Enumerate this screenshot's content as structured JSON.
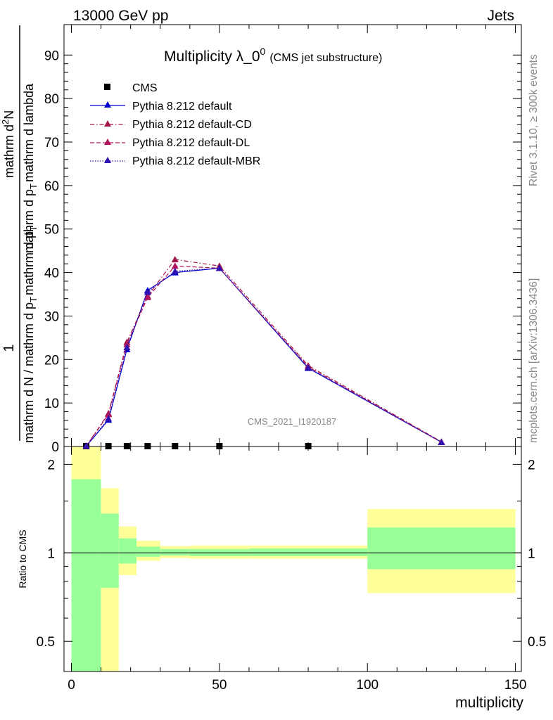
{
  "header": {
    "energy_label": "13000 GeV pp",
    "category_label": "Jets"
  },
  "side_labels": {
    "rivet": "Rivet 3.1.10, ≥ 300k events",
    "mcplots": "mcplots.cern.ch [arXiv:1306.3436]"
  },
  "watermark": "CMS_2021_I1920187",
  "chart_data": [
    {
      "type": "line",
      "title_main": "Multiplicity λ_0",
      "title_sup": "0",
      "title_sub": "(CMS jet substructure)",
      "ylabel": {
        "fraction_numerator": "1",
        "denominator": "mathrm d N / mathrm d p",
        "denominator_sub": "T",
        "denominator_tail": "mathrm d p",
        "denominator_tail_sub": "T",
        "numerator": "mathrm d",
        "numerator_sup": "2",
        "numerator_tail": "N",
        "stack": "mathrm d p",
        "stack_sub": "T",
        "stack_tail": "mathrm d lambda"
      },
      "xlim": [
        -2.5,
        152
      ],
      "ylim": [
        0,
        97
      ],
      "yticks": [
        0,
        10,
        20,
        30,
        40,
        50,
        60,
        70,
        80,
        90
      ],
      "ytick_labels": [
        "0",
        "10",
        "20",
        "30",
        "40",
        "50",
        "60",
        "70",
        "80",
        "90"
      ],
      "legend_position": "top-left",
      "series": [
        {
          "name": "CMS",
          "style": "marker-square",
          "color": "#000000",
          "x": [
            5,
            12.5,
            18.75,
            25.75,
            35,
            50,
            80
          ],
          "y": [
            0,
            0,
            0,
            0,
            0,
            0,
            0
          ]
        },
        {
          "name": "Pythia 8.212 default",
          "style": "solid",
          "color": "#0000cc",
          "x": [
            5,
            12.5,
            18.75,
            25.75,
            35,
            50,
            80,
            125
          ],
          "y": [
            0.1,
            6.1,
            22.3,
            35.9,
            40.0,
            41.0,
            18.0,
            1.0
          ]
        },
        {
          "name": "Pythia 8.212 default-CD",
          "style": "dashdot",
          "color": "#a1164b",
          "x": [
            5,
            12.5,
            18.75,
            25.75,
            35,
            50,
            80,
            125
          ],
          "y": [
            0.1,
            7.6,
            24.0,
            34.6,
            43.0,
            41.5,
            18.6,
            1.1
          ]
        },
        {
          "name": "Pythia 8.212 default-DL",
          "style": "dashed",
          "color": "#b01560",
          "x": [
            5,
            12.5,
            18.75,
            25.75,
            35,
            50,
            80,
            125
          ],
          "y": [
            0.1,
            7.4,
            23.5,
            34.3,
            41.5,
            41.0,
            18.3,
            1.0
          ]
        },
        {
          "name": "Pythia 8.212 default-MBR",
          "style": "dotted",
          "color": "#3010b0",
          "x": [
            5,
            12.5,
            18.75,
            25.75,
            35,
            50,
            80,
            125
          ],
          "y": [
            0.1,
            6.4,
            22.8,
            35.5,
            40.3,
            41.0,
            18.1,
            1.0
          ]
        }
      ]
    },
    {
      "type": "area",
      "ylabel": "Ratio to CMS",
      "xlabel": "multiplicity",
      "xlim": [
        -2.5,
        152
      ],
      "ylim": [
        0.395,
        2.3
      ],
      "xticks": [
        0,
        50,
        100,
        150
      ],
      "xtick_labels": [
        "0",
        "50",
        "100",
        "150"
      ],
      "yticks": [
        0.5,
        1,
        2
      ],
      "ytick_labels": [
        "0.5",
        "1",
        "2"
      ],
      "reference_line": 1,
      "bins": [
        {
          "x0": 0,
          "x1": 10,
          "inner": [
            0.3,
            1.78
          ],
          "outer": [
            0.2,
            3.0
          ]
        },
        {
          "x0": 10,
          "x1": 16,
          "inner": [
            0.76,
            1.36
          ],
          "outer": [
            0.38,
            1.66
          ]
        },
        {
          "x0": 16,
          "x1": 22,
          "inner": [
            0.92,
            1.12
          ],
          "outer": [
            0.84,
            1.23
          ]
        },
        {
          "x0": 22,
          "x1": 30,
          "inner": [
            0.97,
            1.05
          ],
          "outer": [
            0.94,
            1.1
          ]
        },
        {
          "x0": 30,
          "x1": 40,
          "inner": [
            0.98,
            1.03
          ],
          "outer": [
            0.96,
            1.055
          ]
        },
        {
          "x0": 40,
          "x1": 60,
          "inner": [
            0.975,
            1.03
          ],
          "outer": [
            0.955,
            1.06
          ]
        },
        {
          "x0": 60,
          "x1": 100,
          "inner": [
            0.975,
            1.035
          ],
          "outer": [
            0.955,
            1.06
          ]
        },
        {
          "x0": 100,
          "x1": 150,
          "inner": [
            0.88,
            1.22
          ],
          "outer": [
            0.73,
            1.41
          ]
        }
      ]
    }
  ]
}
